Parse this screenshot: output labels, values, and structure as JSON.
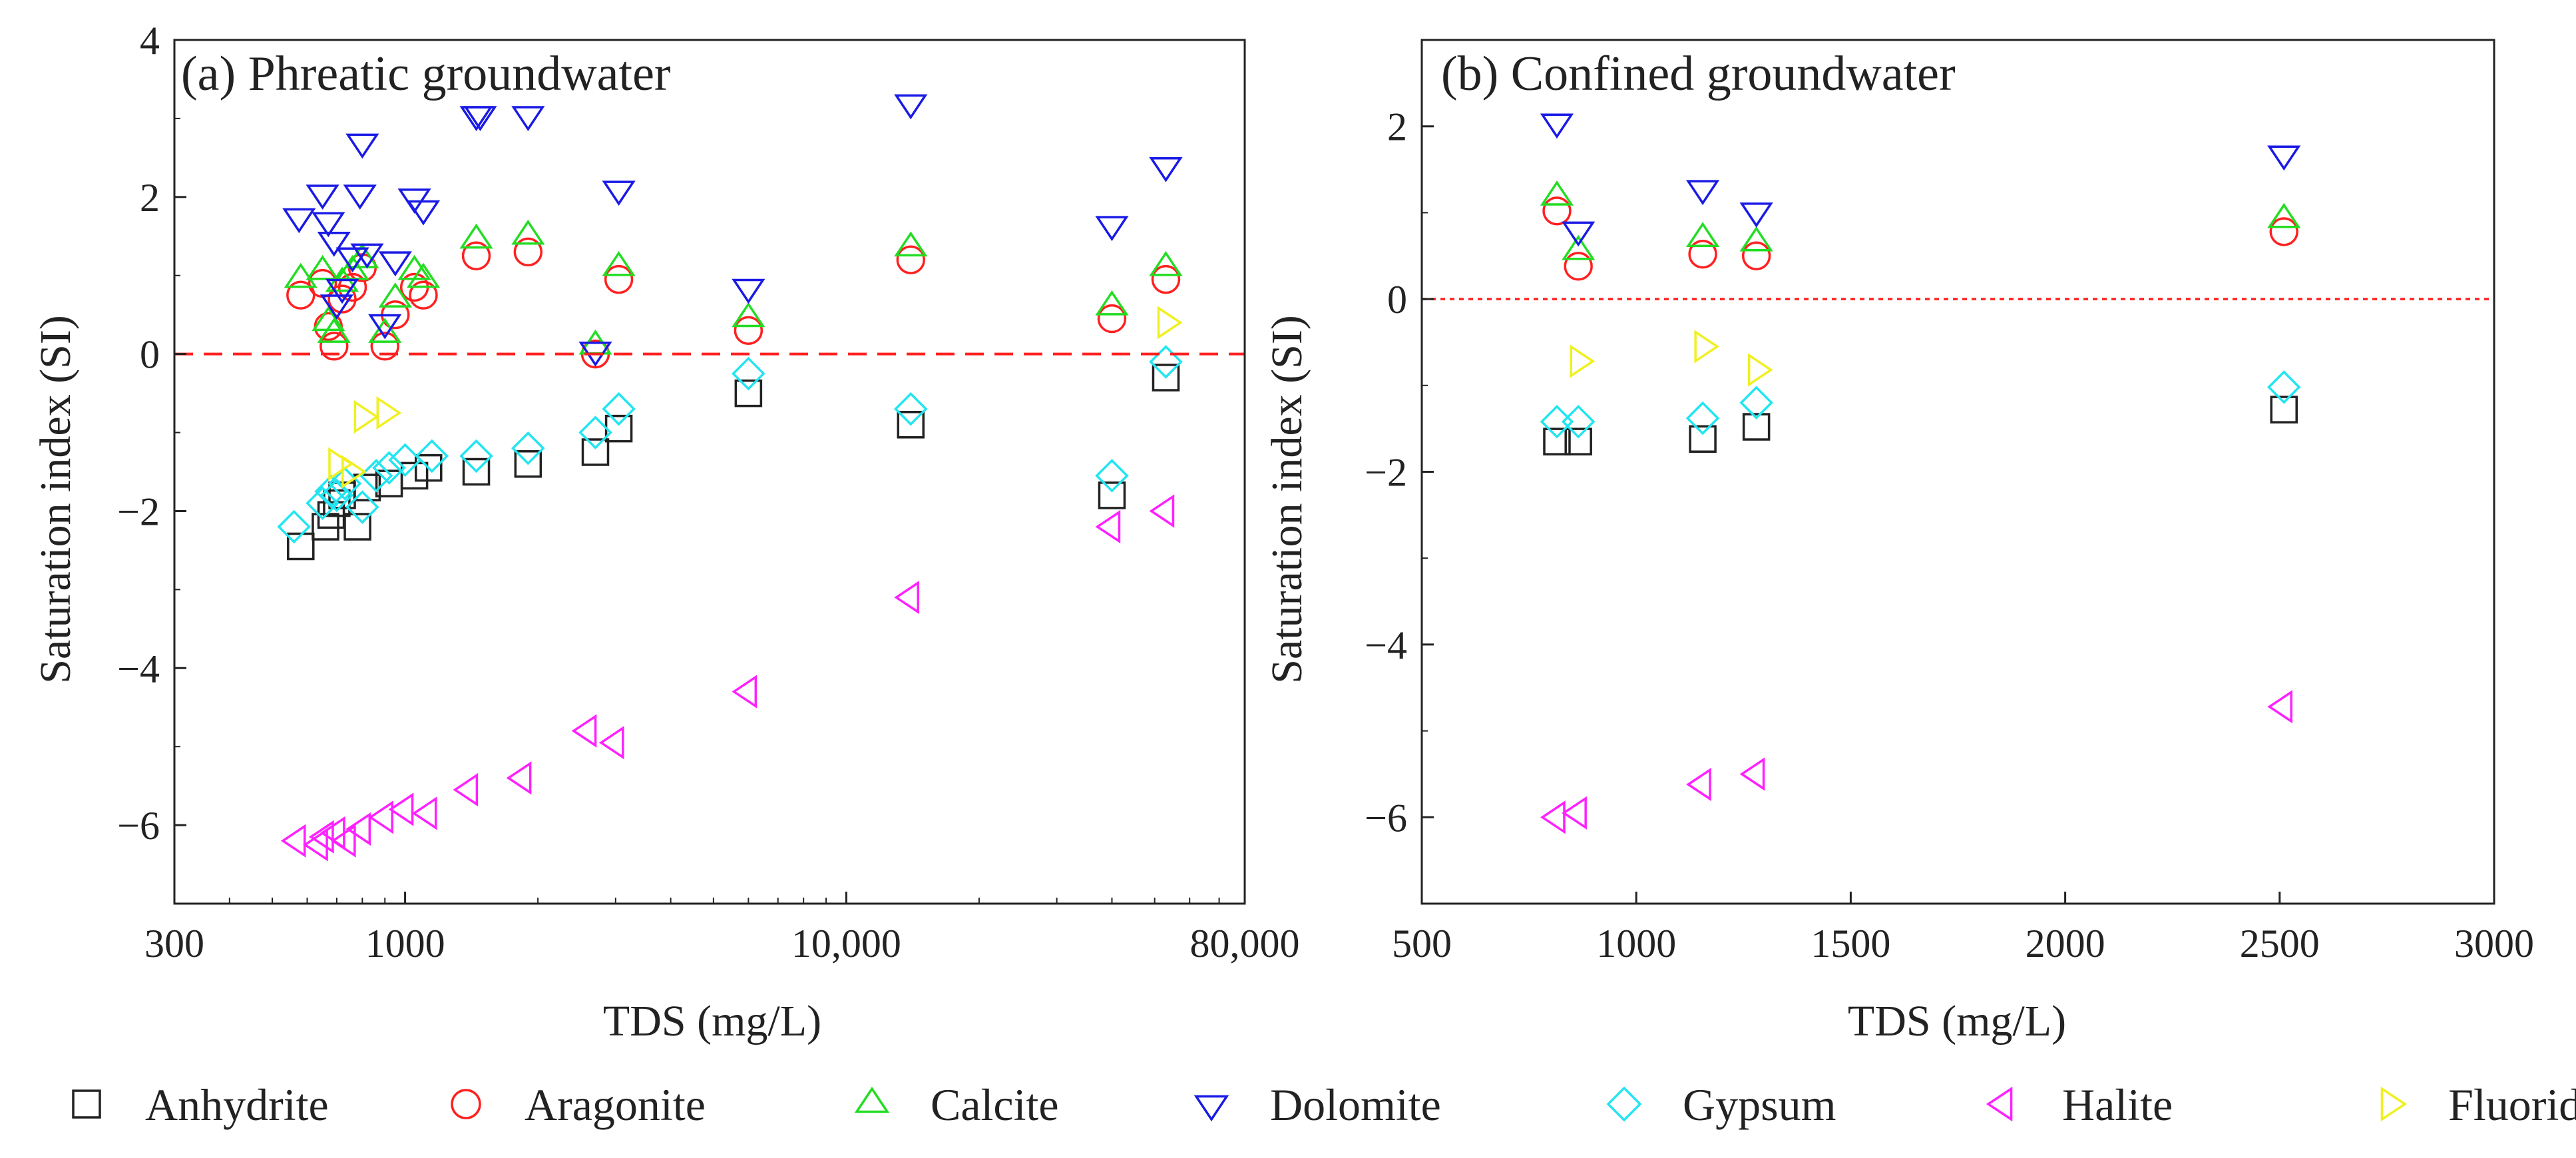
{
  "figure": {
    "legend": [
      {
        "name": "Anhydrite",
        "marker": "square",
        "color": "#222222"
      },
      {
        "name": "Aragonite",
        "marker": "circle",
        "color": "#ff2020"
      },
      {
        "name": "Calcite",
        "marker": "triangle-up",
        "color": "#22dd22"
      },
      {
        "name": "Dolomite",
        "marker": "triangle-down",
        "color": "#1a1ae6"
      },
      {
        "name": "Gypsum",
        "marker": "diamond",
        "color": "#22e5f0"
      },
      {
        "name": "Halite",
        "marker": "triangle-left",
        "color": "#ff20ff"
      },
      {
        "name": "Fluoride",
        "marker": "triangle-right",
        "color": "#f0f020"
      }
    ]
  },
  "chart_data": [
    {
      "type": "scatter",
      "title": "(a) Phreatic groundwater",
      "xlabel": "TDS (mg/L)",
      "ylabel": "Saturation index (SI)",
      "xscale": "log",
      "xlim": [
        300,
        80000
      ],
      "ylim": [
        -7,
        4
      ],
      "xticks": [
        300,
        1000,
        10000,
        80000
      ],
      "xtick_labels": [
        "300",
        "1000",
        "10,000",
        "80,000"
      ],
      "yticks": [
        4,
        2,
        0,
        -2,
        -4,
        -6
      ],
      "ytick_labels": [
        "4",
        "2",
        "0",
        "−2",
        "−4",
        "−6"
      ],
      "reference_line": {
        "y": 0,
        "style": "dashed",
        "color": "#ff2020"
      },
      "series": [
        {
          "name": "Anhydrite",
          "points": [
            [
              580,
              -2.45
            ],
            [
              660,
              -2.2
            ],
            [
              680,
              -2.05
            ],
            [
              700,
              -1.9
            ],
            [
              720,
              -1.8
            ],
            [
              780,
              -2.2
            ],
            [
              820,
              -1.7
            ],
            [
              920,
              -1.65
            ],
            [
              1050,
              -1.55
            ],
            [
              1130,
              -1.45
            ],
            [
              1450,
              -1.5
            ],
            [
              1900,
              -1.4
            ],
            [
              2700,
              -1.25
            ],
            [
              3050,
              -0.95
            ],
            [
              6000,
              -0.5
            ],
            [
              14000,
              -0.9
            ],
            [
              40000,
              -1.8
            ],
            [
              53000,
              -0.3
            ]
          ]
        },
        {
          "name": "Aragonite",
          "points": [
            [
              580,
              0.75
            ],
            [
              650,
              0.9
            ],
            [
              670,
              0.35
            ],
            [
              690,
              0.1
            ],
            [
              720,
              0.7
            ],
            [
              760,
              0.85
            ],
            [
              800,
              1.1
            ],
            [
              900,
              0.1
            ],
            [
              950,
              0.5
            ],
            [
              1050,
              0.85
            ],
            [
              1100,
              0.75
            ],
            [
              1450,
              1.25
            ],
            [
              1900,
              1.3
            ],
            [
              2700,
              0
            ],
            [
              3050,
              0.95
            ],
            [
              6000,
              0.3
            ],
            [
              14000,
              1.2
            ],
            [
              40000,
              0.45
            ],
            [
              53000,
              0.95
            ]
          ]
        },
        {
          "name": "Calcite",
          "points": [
            [
              580,
              0.95
            ],
            [
              650,
              1.05
            ],
            [
              670,
              0.4
            ],
            [
              690,
              0.25
            ],
            [
              720,
              0.9
            ],
            [
              760,
              1.05
            ],
            [
              800,
              1.2
            ],
            [
              900,
              0.25
            ],
            [
              950,
              0.7
            ],
            [
              1050,
              1.05
            ],
            [
              1100,
              0.95
            ],
            [
              1450,
              1.45
            ],
            [
              1900,
              1.5
            ],
            [
              2700,
              0.1
            ],
            [
              3050,
              1.1
            ],
            [
              6000,
              0.45
            ],
            [
              14000,
              1.35
            ],
            [
              40000,
              0.6
            ],
            [
              53000,
              1.1
            ]
          ]
        },
        {
          "name": "Dolomite",
          "points": [
            [
              575,
              1.75
            ],
            [
              650,
              2.05
            ],
            [
              670,
              1.7
            ],
            [
              690,
              1.45
            ],
            [
              700,
              0.65
            ],
            [
              720,
              0.85
            ],
            [
              760,
              1.25
            ],
            [
              790,
              2.05
            ],
            [
              800,
              2.7
            ],
            [
              820,
              1.3
            ],
            [
              900,
              0.4
            ],
            [
              950,
              1.2
            ],
            [
              1050,
              2.0
            ],
            [
              1100,
              1.85
            ],
            [
              1450,
              3.05
            ],
            [
              1480,
              3.05
            ],
            [
              1900,
              3.05
            ],
            [
              2700,
              0.05
            ],
            [
              3050,
              2.1
            ],
            [
              6000,
              0.85
            ],
            [
              14000,
              3.2
            ],
            [
              40000,
              1.65
            ],
            [
              53000,
              2.4
            ]
          ]
        },
        {
          "name": "Gypsum",
          "points": [
            [
              560,
              -2.2
            ],
            [
              650,
              -1.9
            ],
            [
              680,
              -1.75
            ],
            [
              700,
              -1.8
            ],
            [
              730,
              -1.65
            ],
            [
              800,
              -1.95
            ],
            [
              860,
              -1.55
            ],
            [
              920,
              -1.45
            ],
            [
              1000,
              -1.35
            ],
            [
              1150,
              -1.3
            ],
            [
              1450,
              -1.3
            ],
            [
              1900,
              -1.2
            ],
            [
              2700,
              -1.0
            ],
            [
              3050,
              -0.7
            ],
            [
              6000,
              -0.25
            ],
            [
              14000,
              -0.7
            ],
            [
              40000,
              -1.55
            ],
            [
              53000,
              -0.1
            ]
          ]
        },
        {
          "name": "Halite",
          "points": [
            [
              570,
              -6.2
            ],
            [
              640,
              -6.25
            ],
            [
              660,
              -6.15
            ],
            [
              700,
              -6.1
            ],
            [
              740,
              -6.2
            ],
            [
              800,
              -6.05
            ],
            [
              900,
              -5.9
            ],
            [
              1000,
              -5.8
            ],
            [
              1130,
              -5.85
            ],
            [
              1400,
              -5.55
            ],
            [
              1850,
              -5.4
            ],
            [
              2600,
              -4.8
            ],
            [
              3000,
              -4.95
            ],
            [
              6000,
              -4.3
            ],
            [
              14000,
              -3.1
            ],
            [
              40000,
              -2.2
            ],
            [
              53000,
              -2.0
            ]
          ]
        },
        {
          "name": "Fluoride",
          "points": [
            [
              700,
              -1.4
            ],
            [
              750,
              -1.5
            ],
            [
              800,
              -0.8
            ],
            [
              900,
              -0.75
            ],
            [
              53000,
              0.4
            ]
          ]
        }
      ]
    },
    {
      "type": "scatter",
      "title": "(b) Confined groundwater",
      "xlabel": "TDS (mg/L)",
      "ylabel": "Saturation index (SI)",
      "xscale": "linear",
      "xlim": [
        500,
        3000
      ],
      "ylim": [
        -7,
        3
      ],
      "xticks": [
        500,
        1000,
        1500,
        2000,
        2500,
        3000
      ],
      "xtick_labels": [
        "500",
        "1000",
        "1500",
        "2000",
        "2500",
        "3000"
      ],
      "yticks": [
        2,
        0,
        -2,
        -4,
        -6
      ],
      "ytick_labels": [
        "2",
        "0",
        "−2",
        "−4",
        "−6"
      ],
      "reference_line": {
        "y": 0,
        "style": "dotted",
        "color": "#ff2020"
      },
      "series": [
        {
          "name": "Anhydrite",
          "points": [
            [
              815,
              -1.65
            ],
            [
              865,
              -1.65
            ],
            [
              1155,
              -1.62
            ],
            [
              1280,
              -1.48
            ],
            [
              2510,
              -1.28
            ]
          ]
        },
        {
          "name": "Aragonite",
          "points": [
            [
              815,
              1.02
            ],
            [
              865,
              0.38
            ],
            [
              1155,
              0.52
            ],
            [
              1280,
              0.5
            ],
            [
              2510,
              0.78
            ]
          ]
        },
        {
          "name": "Calcite",
          "points": [
            [
              815,
              1.18
            ],
            [
              865,
              0.55
            ],
            [
              1155,
              0.7
            ],
            [
              1280,
              0.65
            ],
            [
              2510,
              0.92
            ]
          ]
        },
        {
          "name": "Dolomite",
          "points": [
            [
              815,
              2.05
            ],
            [
              865,
              0.8
            ],
            [
              1155,
              1.28
            ],
            [
              1280,
              1.02
            ],
            [
              2510,
              1.68
            ]
          ]
        },
        {
          "name": "Gypsum",
          "points": [
            [
              815,
              -1.42
            ],
            [
              865,
              -1.42
            ],
            [
              1155,
              -1.38
            ],
            [
              1280,
              -1.2
            ],
            [
              2510,
              -1.02
            ]
          ]
        },
        {
          "name": "Halite",
          "points": [
            [
              815,
              -6.0
            ],
            [
              865,
              -5.95
            ],
            [
              1155,
              -5.62
            ],
            [
              1280,
              -5.5
            ],
            [
              2510,
              -4.72
            ]
          ]
        },
        {
          "name": "Fluoride",
          "points": [
            [
              865,
              -0.72
            ],
            [
              1155,
              -0.55
            ],
            [
              1280,
              -0.82
            ]
          ]
        }
      ]
    }
  ]
}
